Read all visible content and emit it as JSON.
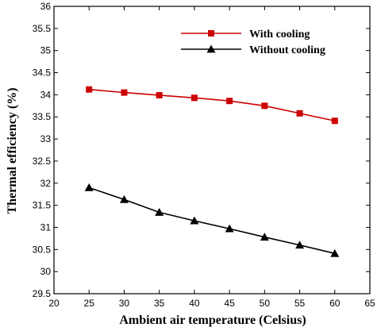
{
  "chart_data": {
    "type": "line",
    "title": "",
    "xlabel": "Ambient  air temperature (Celsius)",
    "ylabel": "Thermal efficiency (%)",
    "xlim": [
      20,
      65
    ],
    "ylim": [
      29.5,
      36
    ],
    "x_ticks": [
      20,
      25,
      30,
      35,
      40,
      45,
      50,
      55,
      60,
      65
    ],
    "y_ticks": [
      29.5,
      30,
      30.5,
      31,
      31.5,
      32,
      32.5,
      33,
      33.5,
      34,
      34.5,
      35,
      35.5,
      36
    ],
    "x_tick_labels": [
      "20",
      "25",
      "30",
      "35",
      "40",
      "45",
      "50",
      "55",
      "60",
      "65"
    ],
    "y_tick_labels": [
      "29.5",
      "30",
      "30.5",
      "31",
      "31.5",
      "32",
      "32.5",
      "33",
      "33.5",
      "34",
      "34.5",
      "35",
      "35.5",
      "36"
    ],
    "grid": false,
    "legend_position": "top-right",
    "x": [
      25,
      30,
      35,
      40,
      45,
      50,
      55,
      60
    ],
    "series": [
      {
        "name": "With cooling",
        "color": "#cc0000",
        "marker": "square",
        "values": [
          34.12,
          34.05,
          33.99,
          33.93,
          33.86,
          33.75,
          33.58,
          33.41
        ]
      },
      {
        "name": "Without cooling",
        "color": "#000000",
        "marker": "triangle",
        "values": [
          31.9,
          31.63,
          31.34,
          31.15,
          30.97,
          30.78,
          30.6,
          30.41
        ]
      }
    ]
  }
}
